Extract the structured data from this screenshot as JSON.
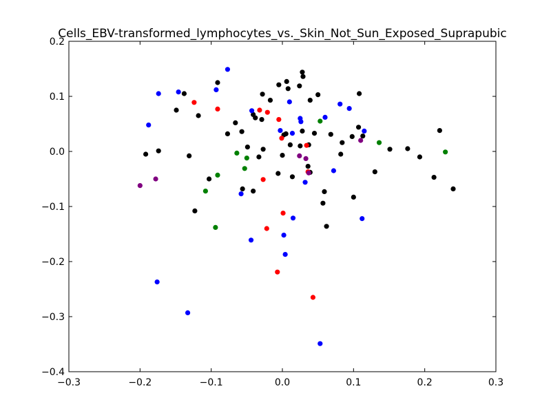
{
  "chart_data": {
    "type": "scatter",
    "title": "Cells_EBV-transformed_lymphocytes_vs._Skin_Not_Sun_Exposed_Suprapubic",
    "xlabel": "",
    "ylabel": "",
    "xlim": [
      -0.3,
      0.3
    ],
    "ylim": [
      -0.4,
      0.2
    ],
    "grid": false,
    "x_ticks": [
      -0.3,
      -0.2,
      -0.1,
      0.0,
      0.1,
      0.2,
      0.3
    ],
    "y_ticks": [
      -0.4,
      -0.3,
      -0.2,
      -0.1,
      0.0,
      0.1,
      0.2
    ],
    "x_tick_labels": [
      "−0.3",
      "−0.2",
      "−0.1",
      "0.0",
      "0.1",
      "0.2",
      "0.3"
    ],
    "y_tick_labels": [
      "−0.4",
      "−0.3",
      "−0.2",
      "−0.1",
      "0.0",
      "0.1",
      "0.2"
    ],
    "series": [
      {
        "color": "#000000",
        "points": [
          [
            -0.149,
            0.075
          ],
          [
            -0.138,
            0.105
          ],
          [
            -0.118,
            0.065
          ],
          [
            -0.091,
            0.125
          ],
          [
            -0.077,
            0.032
          ],
          [
            -0.066,
            0.052
          ],
          [
            -0.057,
            0.036
          ],
          [
            -0.049,
            0.008
          ],
          [
            -0.041,
            0.067
          ],
          [
            -0.038,
            0.061
          ],
          [
            -0.029,
            0.058
          ],
          [
            -0.028,
            0.104
          ],
          [
            -0.017,
            0.093
          ],
          [
            -0.005,
            0.121
          ],
          [
            0.006,
            0.127
          ],
          [
            0.008,
            0.114
          ],
          [
            0.024,
            0.119
          ],
          [
            0.028,
            0.144
          ],
          [
            0.029,
            0.136
          ],
          [
            0.039,
            0.093
          ],
          [
            0.05,
            0.103
          ],
          [
            0.002,
            0.03
          ],
          [
            0.005,
            0.032
          ],
          [
            0.011,
            0.012
          ],
          [
            0.025,
            0.01
          ],
          [
            0.028,
            0.037
          ],
          [
            0.037,
            0.012
          ],
          [
            0.045,
            0.033
          ],
          [
            0.068,
            0.031
          ],
          [
            0.082,
            -0.005
          ],
          [
            0.084,
            0.016
          ],
          [
            0.098,
            0.027
          ],
          [
            0.107,
            0.044
          ],
          [
            0.108,
            0.105
          ],
          [
            0.113,
            0.028
          ],
          [
            0.151,
            0.004
          ],
          [
            0.176,
            0.005
          ],
          [
            0.193,
            -0.01
          ],
          [
            0.213,
            -0.047
          ],
          [
            0.221,
            0.038
          ],
          [
            0.24,
            -0.068
          ],
          [
            -0.192,
            -0.005
          ],
          [
            -0.174,
            0.001
          ],
          [
            -0.131,
            -0.008
          ],
          [
            -0.103,
            -0.05
          ],
          [
            -0.123,
            -0.108
          ],
          [
            -0.056,
            -0.068
          ],
          [
            -0.041,
            -0.072
          ],
          [
            -0.033,
            -0.01
          ],
          [
            -0.027,
            0.004
          ],
          [
            -0.006,
            -0.04
          ],
          [
            0.0,
            -0.007
          ],
          [
            0.014,
            -0.046
          ],
          [
            0.036,
            -0.027
          ],
          [
            0.039,
            -0.038
          ],
          [
            0.057,
            -0.094
          ],
          [
            0.059,
            -0.073
          ],
          [
            0.062,
            -0.136
          ],
          [
            0.1,
            -0.083
          ],
          [
            0.13,
            -0.037
          ]
        ]
      },
      {
        "color": "#0000ff",
        "points": [
          [
            -0.077,
            0.149
          ],
          [
            -0.174,
            0.105
          ],
          [
            -0.146,
            0.108
          ],
          [
            -0.093,
            0.112
          ],
          [
            -0.188,
            0.048
          ],
          [
            -0.043,
            0.074
          ],
          [
            0.01,
            0.09
          ],
          [
            0.025,
            0.06
          ],
          [
            0.026,
            0.054
          ],
          [
            0.06,
            0.062
          ],
          [
            0.081,
            0.086
          ],
          [
            0.094,
            0.078
          ],
          [
            0.115,
            0.037
          ],
          [
            -0.003,
            0.038
          ],
          [
            0.014,
            0.033
          ],
          [
            0.032,
            -0.056
          ],
          [
            0.072,
            -0.035
          ],
          [
            -0.058,
            -0.077
          ],
          [
            0.015,
            -0.121
          ],
          [
            0.112,
            -0.122
          ],
          [
            -0.044,
            -0.161
          ],
          [
            0.002,
            -0.152
          ],
          [
            0.004,
            -0.187
          ],
          [
            -0.176,
            -0.237
          ],
          [
            -0.133,
            -0.293
          ],
          [
            0.053,
            -0.349
          ]
        ]
      },
      {
        "color": "#ff0000",
        "points": [
          [
            -0.124,
            0.089
          ],
          [
            -0.091,
            0.077
          ],
          [
            -0.032,
            0.075
          ],
          [
            -0.021,
            0.071
          ],
          [
            -0.005,
            0.058
          ],
          [
            -0.001,
            0.024
          ],
          [
            0.034,
            0.011
          ],
          [
            0.036,
            -0.037
          ],
          [
            -0.027,
            -0.051
          ],
          [
            0.001,
            -0.112
          ],
          [
            -0.022,
            -0.14
          ],
          [
            -0.007,
            -0.219
          ],
          [
            0.043,
            -0.265
          ]
        ]
      },
      {
        "color": "#008000",
        "points": [
          [
            0.053,
            0.055
          ],
          [
            0.136,
            0.016
          ],
          [
            0.229,
            -0.001
          ],
          [
            -0.064,
            -0.003
          ],
          [
            -0.05,
            -0.012
          ],
          [
            -0.053,
            -0.031
          ],
          [
            -0.091,
            -0.043
          ],
          [
            -0.108,
            -0.072
          ],
          [
            -0.094,
            -0.138
          ]
        ]
      },
      {
        "color": "#800080",
        "points": [
          [
            0.11,
            0.02
          ],
          [
            0.024,
            -0.008
          ],
          [
            0.033,
            -0.013
          ],
          [
            0.037,
            -0.039
          ],
          [
            -0.178,
            -0.05
          ],
          [
            -0.2,
            -0.062
          ]
        ]
      }
    ]
  }
}
